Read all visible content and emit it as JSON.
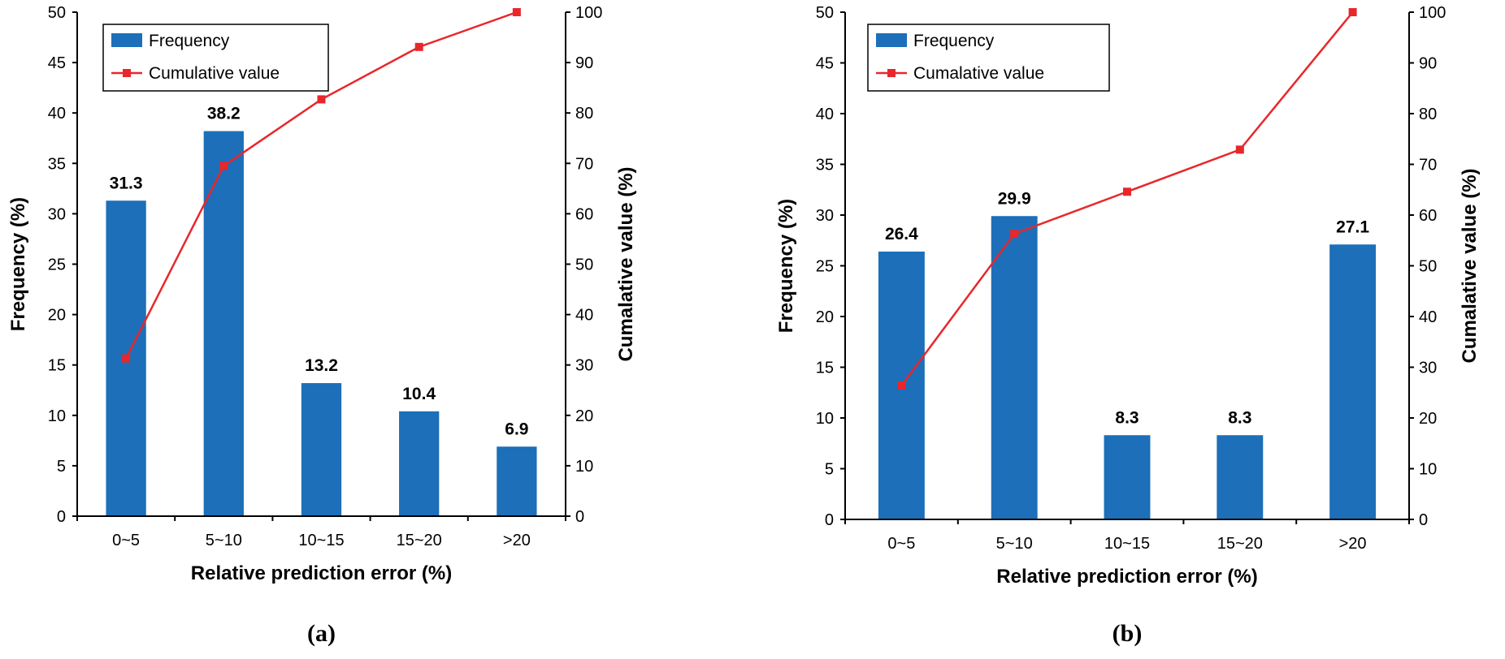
{
  "colors": {
    "bar": "#1c6fb8",
    "line": "#e8272b",
    "axis": "#000000"
  },
  "chart_data": [
    {
      "type": "bar",
      "panel_label": "(a)",
      "categories": [
        "0~5",
        "5~10",
        "10~15",
        "15~20",
        ">20"
      ],
      "series": [
        {
          "name": "Frequency",
          "type": "bar",
          "axis": "left",
          "values": [
            31.3,
            38.2,
            13.2,
            10.4,
            6.9
          ],
          "labels": [
            "31.3",
            "38.2",
            "13.2",
            "10.4",
            "6.9"
          ]
        },
        {
          "name": "Cumulative value",
          "type": "line",
          "axis": "right",
          "values": [
            31.3,
            69.5,
            82.7,
            93.1,
            100
          ]
        }
      ],
      "xlabel": "Relative prediction error (%)",
      "ylabel": "Frequency (%)",
      "y2label": "Cumalative value (%)",
      "ylim": [
        0,
        50
      ],
      "y2lim": [
        0,
        100
      ],
      "yticks": [
        "0",
        "5",
        "10",
        "15",
        "20",
        "25",
        "30",
        "35",
        "40",
        "45",
        "50"
      ],
      "y2ticks": [
        "0",
        "10",
        "20",
        "30",
        "40",
        "50",
        "60",
        "70",
        "80",
        "90",
        "100"
      ],
      "legend": "top-left",
      "grid": false
    },
    {
      "type": "bar",
      "panel_label": "(b)",
      "categories": [
        "0~5",
        "5~10",
        "10~15",
        "15~20",
        ">20"
      ],
      "series": [
        {
          "name": "Frequency",
          "type": "bar",
          "axis": "left",
          "values": [
            26.4,
            29.9,
            8.3,
            8.3,
            27.1
          ],
          "labels": [
            "26.4",
            "29.9",
            "8.3",
            "8.3",
            "27.1"
          ]
        },
        {
          "name": "Cumalative value",
          "type": "line",
          "axis": "right",
          "values": [
            26.4,
            56.3,
            64.6,
            72.9,
            100
          ]
        }
      ],
      "xlabel": "Relative prediction error (%)",
      "ylabel": "Frequency (%)",
      "y2label": "Cumalative value (%)",
      "ylim": [
        0,
        50
      ],
      "y2lim": [
        0,
        100
      ],
      "yticks": [
        "0",
        "5",
        "10",
        "15",
        "20",
        "25",
        "30",
        "35",
        "40",
        "45",
        "50"
      ],
      "y2ticks": [
        "0",
        "10",
        "20",
        "30",
        "40",
        "50",
        "60",
        "70",
        "80",
        "90",
        "100"
      ],
      "legend": "top-left",
      "grid": false
    }
  ]
}
